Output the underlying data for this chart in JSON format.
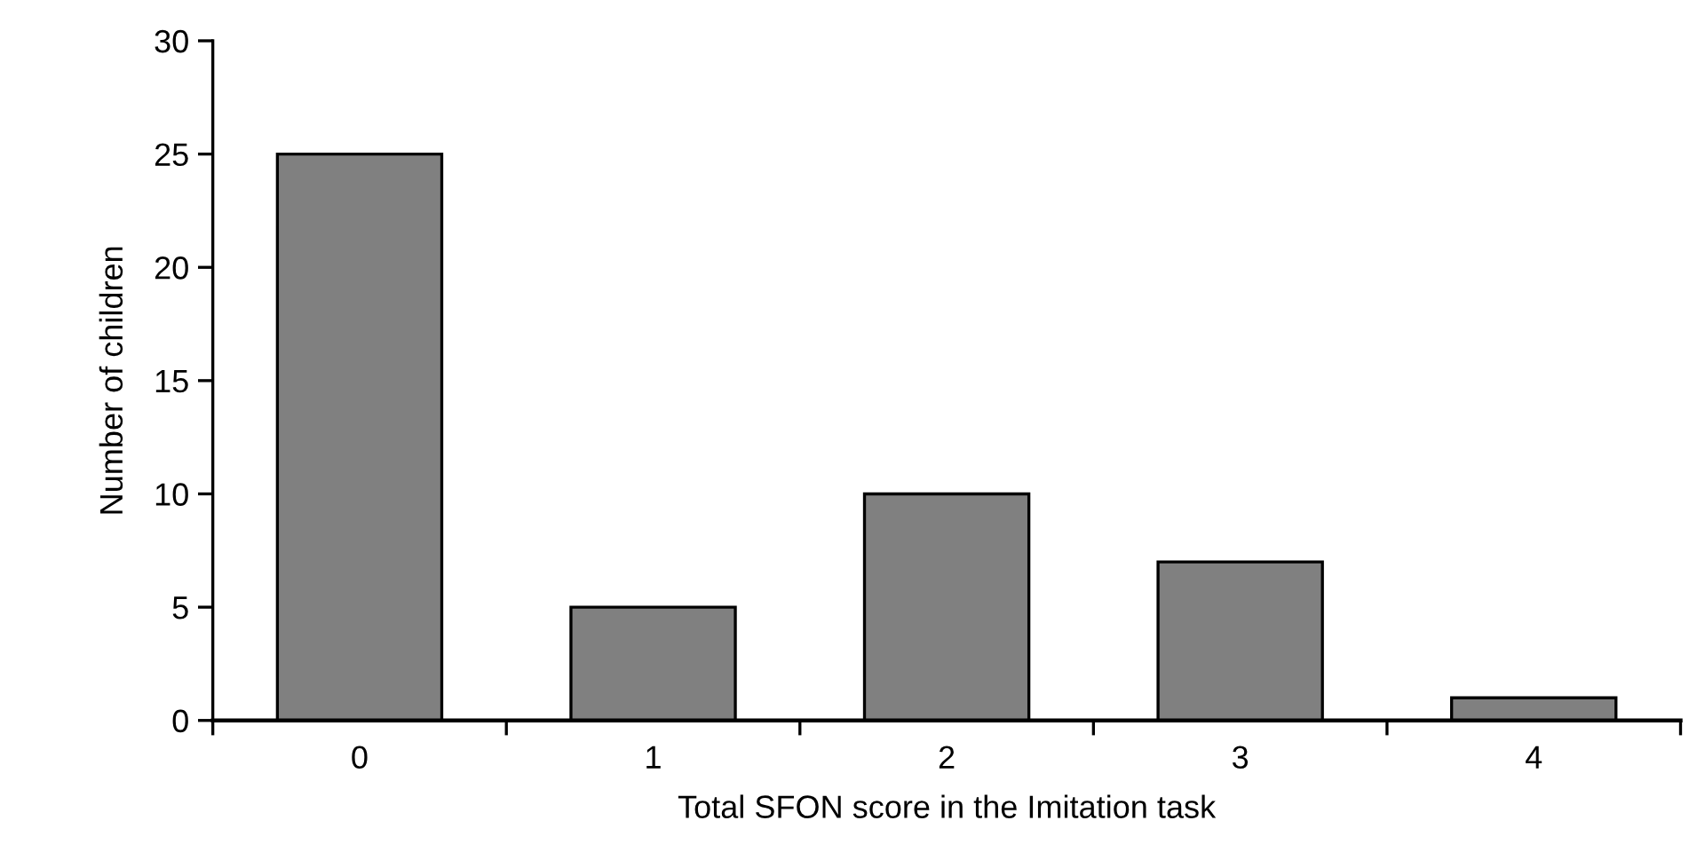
{
  "chart_data": {
    "type": "bar",
    "xlabel": "Total SFON score in the Imitation task",
    "ylabel": "Number of children",
    "categories": [
      "0",
      "1",
      "2",
      "3",
      "4"
    ],
    "values": [
      25,
      5,
      10,
      7,
      1
    ],
    "color": "#808080",
    "ylim": [
      0,
      30
    ],
    "yticks": [
      0,
      5,
      10,
      15,
      20,
      25,
      30
    ],
    "grid": false,
    "legend": false
  }
}
